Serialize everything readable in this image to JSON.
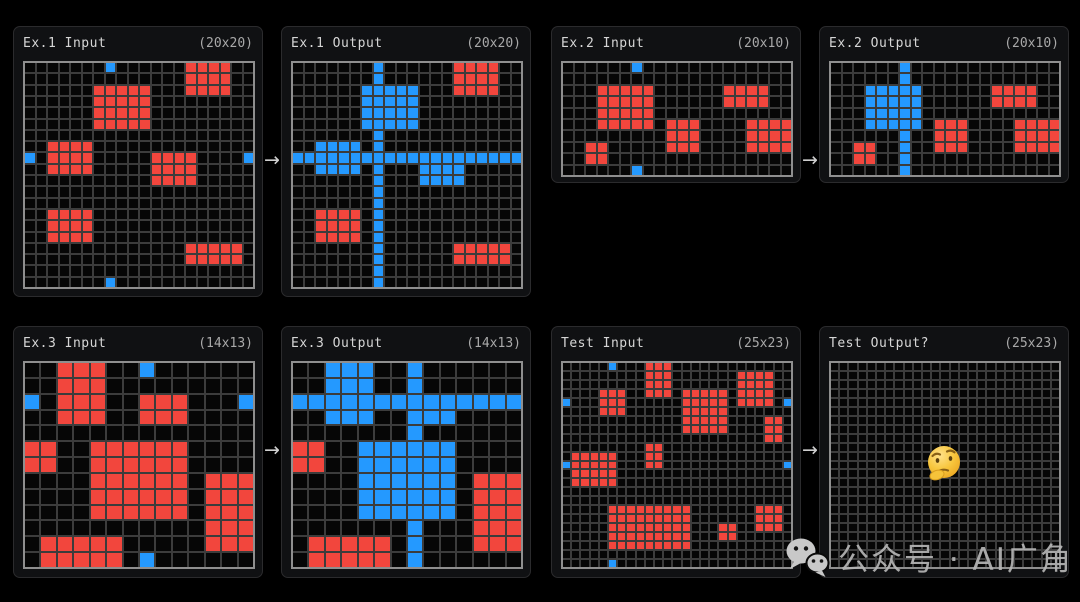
{
  "colors": {
    "red": "#f2463d",
    "blue": "#2499ff",
    "cell": "#060606",
    "grid_line": "#3c3c3c",
    "grid_border": "#8f8f8f",
    "panel_bg": "#101113",
    "header_text": "#d6d6d6",
    "dims_text": "#a9a9a9",
    "arrow": "#cfcfcf",
    "watermark_text_color": "#b5b5b5",
    "emoji_yellow": "#f8c63d"
  },
  "panels": [
    {
      "key": "ex1_input",
      "label": "Ex.1 Input",
      "dims": "(20x20)"
    },
    {
      "key": "ex1_output",
      "label": "Ex.1 Output",
      "dims": "(20x20)"
    },
    {
      "key": "ex2_input",
      "label": "Ex.2 Input",
      "dims": "(20x10)"
    },
    {
      "key": "ex2_output",
      "label": "Ex.2 Output",
      "dims": "(20x10)"
    },
    {
      "key": "ex3_input",
      "label": "Ex.3 Input",
      "dims": "(14x13)"
    },
    {
      "key": "ex3_output",
      "label": "Ex.3 Output",
      "dims": "(14x13)"
    },
    {
      "key": "test_input",
      "label": "Test Input",
      "dims": "(25x23)"
    },
    {
      "key": "test_output",
      "label": "Test Output?",
      "dims": "(25x23)"
    }
  ],
  "grids": {
    "ex1_input": {
      "cols": 20,
      "rows": 20,
      "red_rects": [
        [
          0,
          14,
          2,
          17
        ],
        [
          2,
          6,
          5,
          10
        ],
        [
          7,
          2,
          9,
          5
        ],
        [
          8,
          11,
          10,
          14
        ],
        [
          13,
          2,
          15,
          5
        ],
        [
          16,
          14,
          17,
          18
        ]
      ],
      "blue_cells": [
        [
          0,
          7
        ],
        [
          8,
          0
        ],
        [
          8,
          19
        ],
        [
          19,
          7
        ]
      ]
    },
    "ex1_output": {
      "cols": 20,
      "rows": 20,
      "blue_row_lines": [
        8
      ],
      "blue_col_lines": [
        7
      ],
      "blue_rects": [
        [
          2,
          6,
          5,
          10
        ],
        [
          7,
          2,
          9,
          5
        ],
        [
          8,
          11,
          10,
          14
        ]
      ],
      "red_rects": [
        [
          0,
          14,
          2,
          17
        ],
        [
          13,
          2,
          15,
          5
        ],
        [
          16,
          14,
          17,
          18
        ]
      ]
    },
    "ex2_input": {
      "cols": 20,
      "rows": 10,
      "red_rects": [
        [
          2,
          3,
          5,
          7
        ],
        [
          2,
          14,
          3,
          17
        ],
        [
          5,
          9,
          7,
          11
        ],
        [
          5,
          16,
          7,
          19
        ],
        [
          7,
          2,
          8,
          3
        ]
      ],
      "blue_cells": [
        [
          0,
          6
        ],
        [
          9,
          6
        ]
      ]
    },
    "ex2_output": {
      "cols": 20,
      "rows": 10,
      "blue_col_lines": [
        6
      ],
      "blue_rects": [
        [
          2,
          3,
          5,
          7
        ]
      ],
      "red_rects": [
        [
          2,
          14,
          3,
          17
        ],
        [
          5,
          9,
          7,
          11
        ],
        [
          5,
          16,
          7,
          19
        ],
        [
          7,
          2,
          8,
          3
        ]
      ]
    },
    "ex3_input": {
      "cols": 14,
      "rows": 13,
      "red_rects": [
        [
          0,
          2,
          3,
          4
        ],
        [
          2,
          7,
          3,
          9
        ],
        [
          5,
          0,
          6,
          1
        ],
        [
          5,
          4,
          9,
          9
        ],
        [
          7,
          11,
          11,
          13
        ],
        [
          11,
          1,
          12,
          5
        ]
      ],
      "blue_cells": [
        [
          0,
          7
        ],
        [
          2,
          0
        ],
        [
          2,
          13
        ],
        [
          12,
          7
        ]
      ]
    },
    "ex3_output": {
      "cols": 14,
      "rows": 13,
      "blue_row_lines": [
        2
      ],
      "blue_col_lines": [
        7
      ],
      "blue_rects": [
        [
          0,
          2,
          3,
          4
        ],
        [
          2,
          7,
          3,
          9
        ],
        [
          5,
          4,
          9,
          9
        ]
      ],
      "red_rects": [
        [
          5,
          0,
          6,
          1
        ],
        [
          7,
          11,
          11,
          13
        ],
        [
          11,
          1,
          12,
          5
        ]
      ]
    },
    "test_input": {
      "cols": 25,
      "rows": 23,
      "red_rects": [
        [
          0,
          9,
          3,
          11
        ],
        [
          1,
          19,
          4,
          22
        ],
        [
          3,
          4,
          5,
          6
        ],
        [
          3,
          13,
          7,
          17
        ],
        [
          6,
          22,
          8,
          23
        ],
        [
          9,
          9,
          11,
          10
        ],
        [
          10,
          1,
          13,
          5
        ],
        [
          16,
          5,
          20,
          13
        ],
        [
          16,
          21,
          18,
          23
        ],
        [
          18,
          17,
          19,
          18
        ]
      ],
      "blue_cells": [
        [
          0,
          5
        ],
        [
          4,
          0
        ],
        [
          4,
          24
        ],
        [
          11,
          0
        ],
        [
          11,
          24
        ],
        [
          22,
          5
        ]
      ]
    },
    "test_output": {
      "cols": 25,
      "rows": 23,
      "red_rects": [],
      "blue_cells": []
    }
  },
  "arrows": {
    "glyph": "→"
  },
  "watermark": {
    "text": "公众号 · AI广角"
  },
  "emoji": {
    "name": "thinking-face"
  }
}
